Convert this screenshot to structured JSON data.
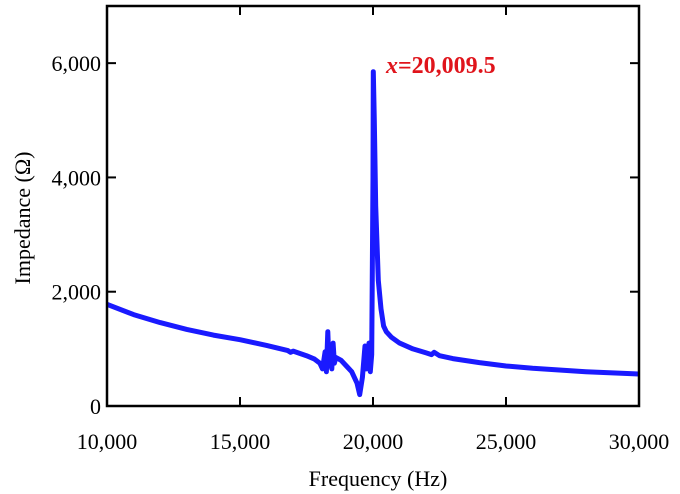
{
  "chart_data": {
    "type": "line",
    "xlabel": "Frequency (Hz)",
    "ylabel": "Impedance (Ω)",
    "xlim": [
      10000,
      30000
    ],
    "ylim": [
      0,
      7000
    ],
    "x_ticks": [
      10000,
      15000,
      20000,
      25000,
      30000
    ],
    "x_tick_labels": [
      "10,000",
      "15,000",
      "20,000",
      "25,000",
      "30,000"
    ],
    "y_ticks": [
      0,
      2000,
      4000,
      6000
    ],
    "y_tick_labels": [
      "0",
      "2,000",
      "4,000",
      "6,000"
    ],
    "grid": false,
    "line_color": "#1a1aff",
    "annotation": {
      "prefix": "x",
      "text": "=20,009.5",
      "color": "#e0141b",
      "x": 20009.5,
      "y": 5850
    },
    "series": [
      {
        "x": [
          10000,
          11000,
          12000,
          13000,
          14000,
          15000,
          16000,
          16800,
          16900,
          17000,
          17500,
          17800,
          18000,
          18100,
          18200,
          18250,
          18300,
          18350,
          18400,
          18450,
          18500,
          18550,
          18600,
          18800,
          19000,
          19200,
          19400,
          19500,
          19600,
          19700,
          19750,
          19800,
          19850,
          19900,
          19950,
          20000,
          20009.5,
          20050,
          20100,
          20200,
          20300,
          20400,
          20500,
          20700,
          21000,
          21500,
          22000,
          22200,
          22300,
          22500,
          23000,
          24000,
          25000,
          26000,
          27000,
          28000,
          29000,
          30000
        ],
        "y": [
          1780,
          1600,
          1460,
          1340,
          1240,
          1160,
          1060,
          970,
          940,
          960,
          880,
          820,
          750,
          650,
          950,
          600,
          1300,
          700,
          900,
          650,
          1100,
          750,
          850,
          800,
          700,
          600,
          400,
          200,
          500,
          1050,
          650,
          900,
          1100,
          600,
          900,
          4000,
          5850,
          5000,
          3500,
          2200,
          1700,
          1400,
          1300,
          1200,
          1100,
          1000,
          930,
          900,
          940,
          880,
          830,
          760,
          700,
          660,
          630,
          600,
          580,
          560
        ]
      }
    ]
  }
}
